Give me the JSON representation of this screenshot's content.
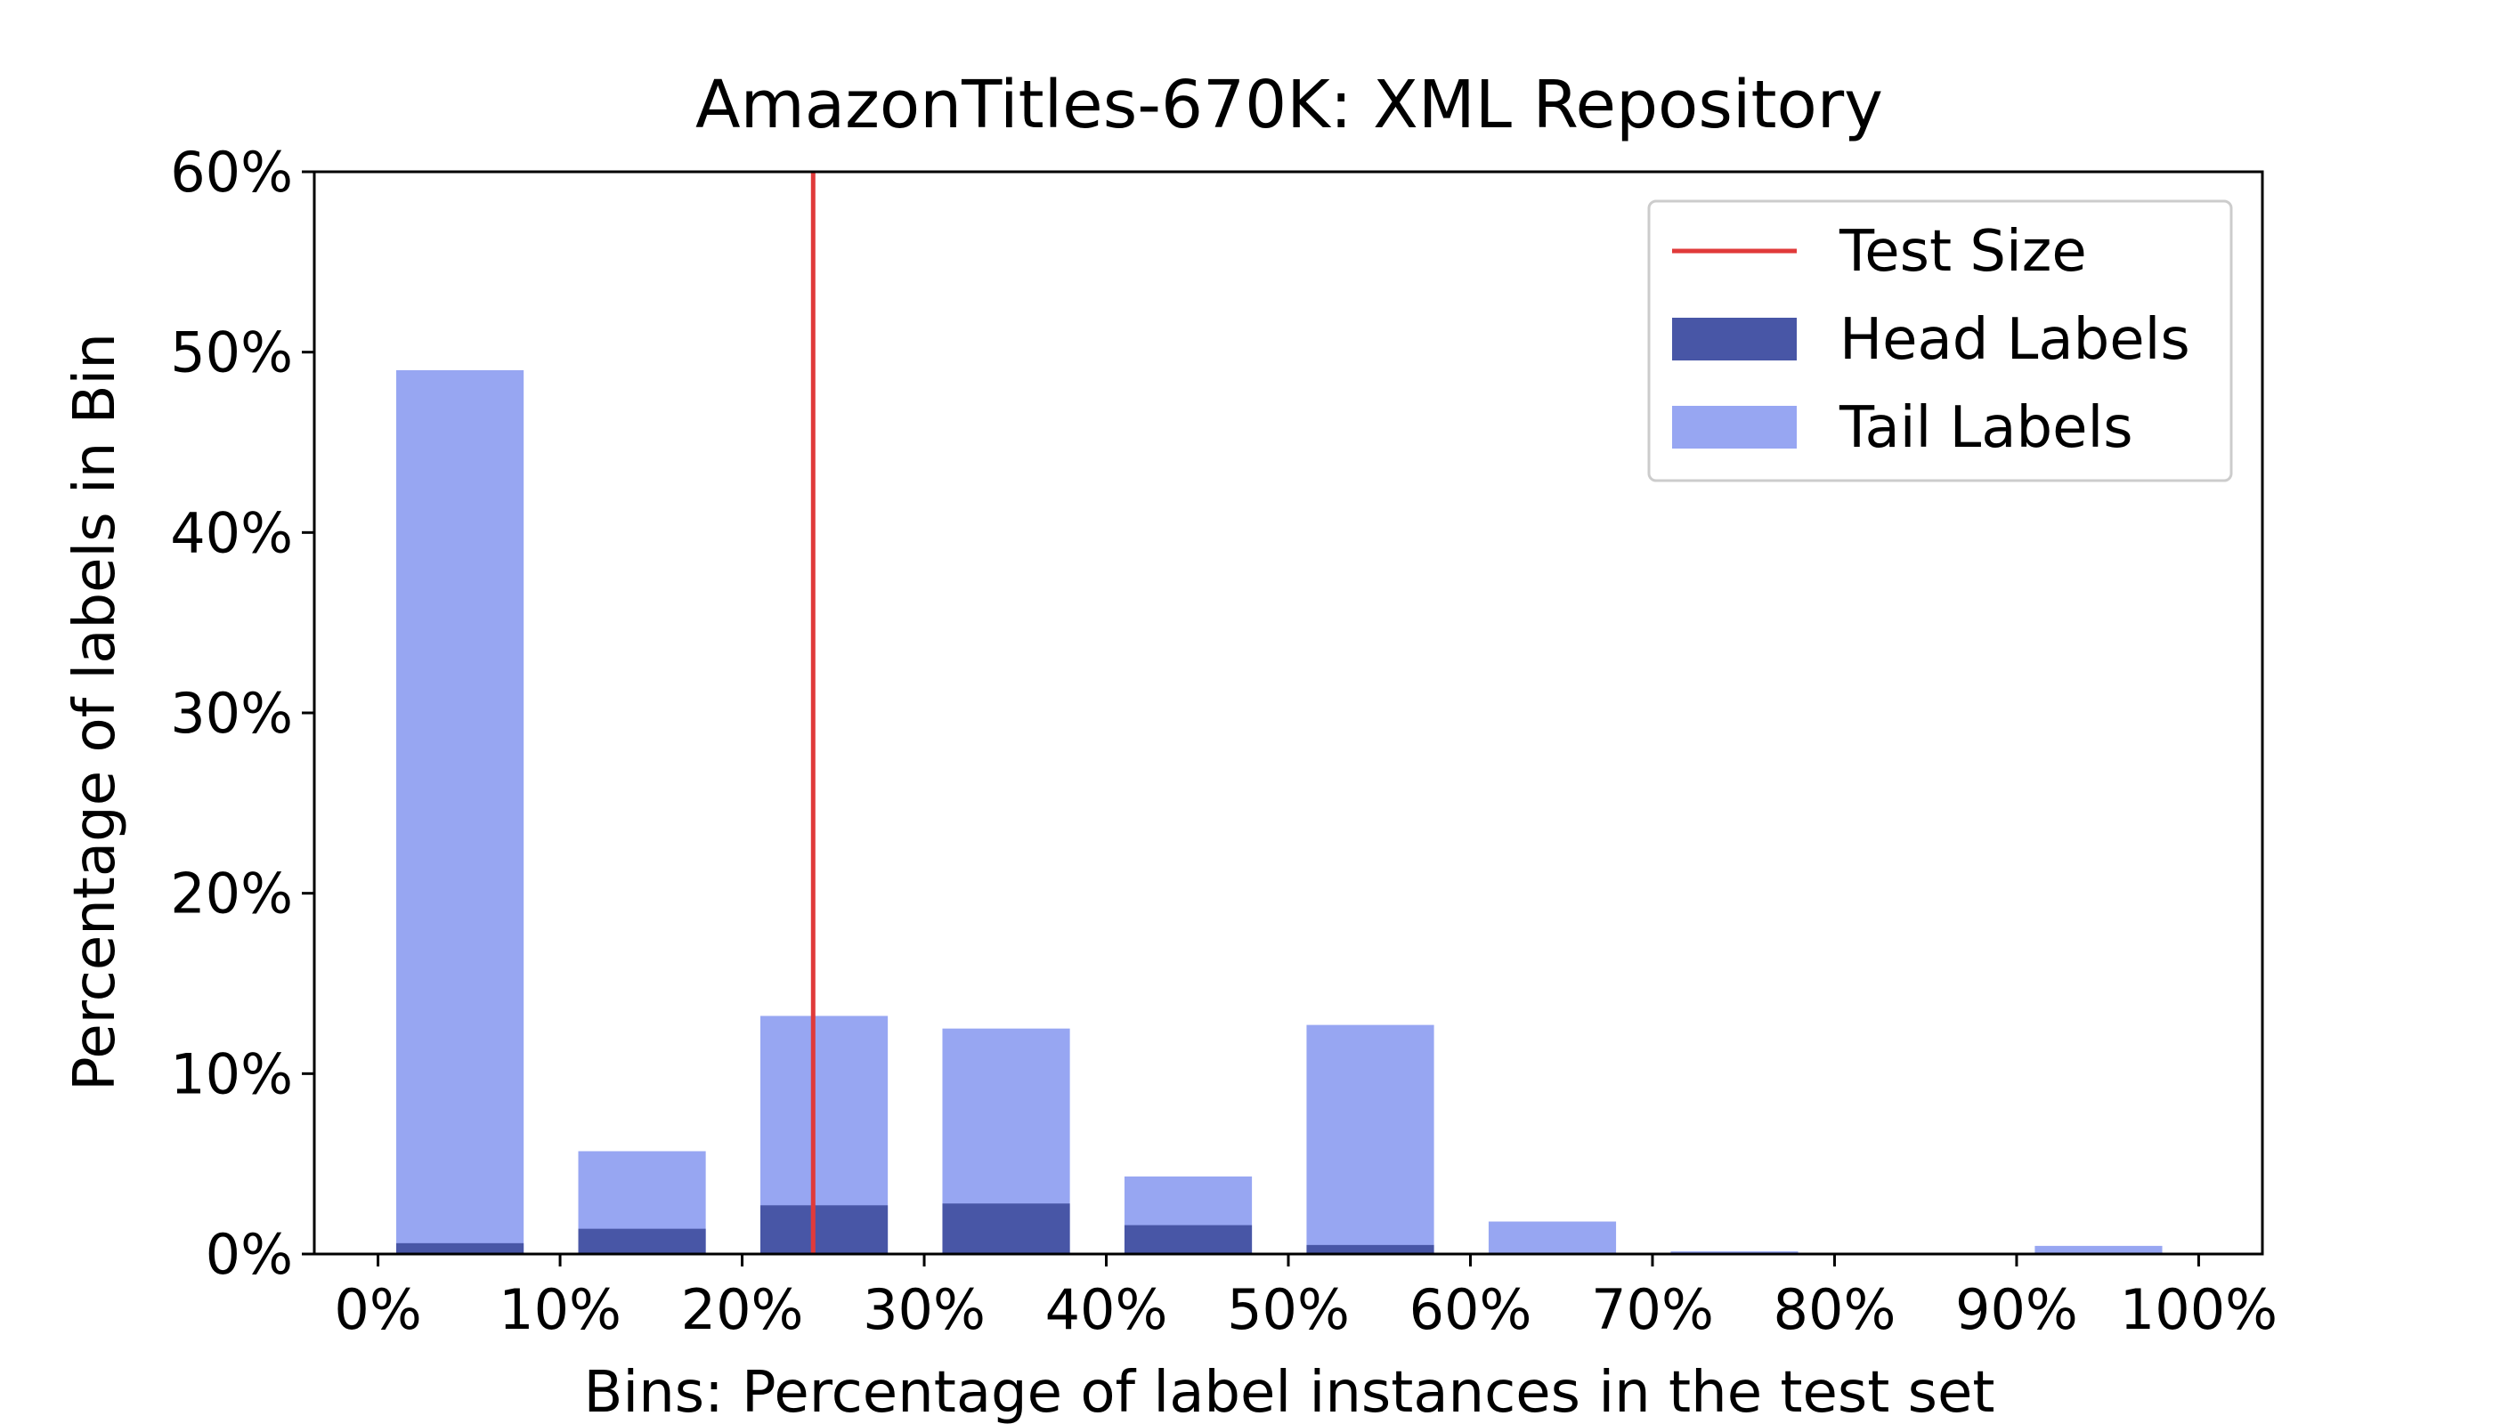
{
  "chart_data": {
    "type": "bar",
    "title": "AmazonTitles-670K: XML Repository",
    "xlabel": "Bins: Percentage of label instances in the test set",
    "ylabel": "Percentage of labels in Bin",
    "xlim": [
      -3.5,
      103.5
    ],
    "ylim": [
      0,
      60
    ],
    "bin_starts": [
      0,
      10,
      20,
      30,
      40,
      50,
      60,
      70,
      80,
      90
    ],
    "bin_width": 7,
    "series": [
      {
        "name": "Tail Labels",
        "color": "#97a6f2",
        "values": [
          49.0,
          5.7,
          13.2,
          12.5,
          4.3,
          12.7,
          1.8,
          0.15,
          0.0,
          0.45
        ]
      },
      {
        "name": "Head Labels",
        "color": "#4856a6",
        "values": [
          0.6,
          1.4,
          2.7,
          2.8,
          1.6,
          0.5,
          0.0,
          0.0,
          0.0,
          0.0
        ]
      }
    ],
    "reference_line": {
      "name": "Test Size",
      "x": 23.9,
      "color": "#e03a3a"
    },
    "xticks": [
      0,
      10,
      20,
      30,
      40,
      50,
      60,
      70,
      80,
      90,
      100
    ],
    "xtick_labels": [
      "0%",
      "10%",
      "20%",
      "30%",
      "40%",
      "50%",
      "60%",
      "70%",
      "80%",
      "90%",
      "100%"
    ],
    "yticks": [
      0,
      10,
      20,
      30,
      40,
      50,
      60
    ],
    "ytick_labels": [
      "0%",
      "10%",
      "20%",
      "30%",
      "40%",
      "50%",
      "60%"
    ],
    "legend": {
      "position": "top-right",
      "entries": [
        {
          "label": "Test Size",
          "kind": "line",
          "color": "#e03a3a"
        },
        {
          "label": "Head Labels",
          "kind": "patch",
          "color": "#4856a6"
        },
        {
          "label": "Tail Labels",
          "kind": "patch",
          "color": "#97a6f2"
        }
      ]
    }
  }
}
